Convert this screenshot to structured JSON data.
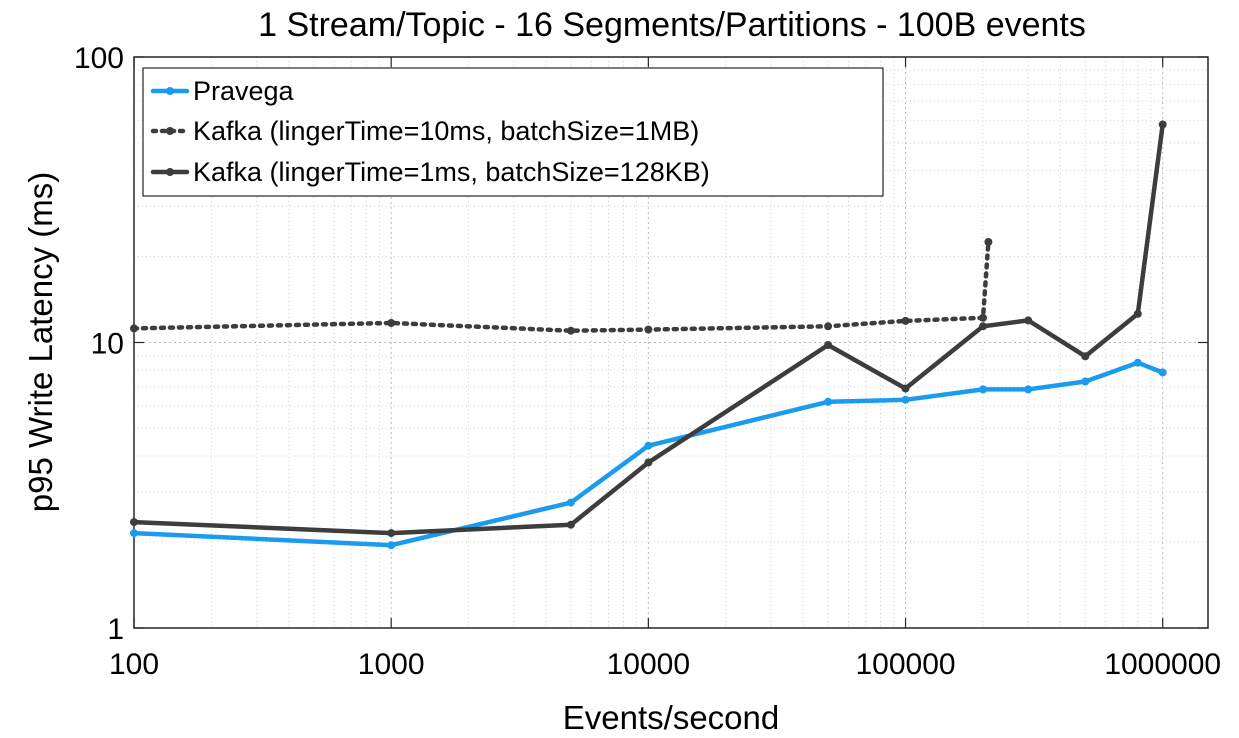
{
  "chart_data": {
    "type": "line",
    "title": "1 Stream/Topic - 16 Segments/Partitions - 100B events",
    "xlabel": "Events/second",
    "ylabel": "p95 Write Latency (ms)",
    "xscale": "log",
    "yscale": "log",
    "xlim": [
      100,
      1500000
    ],
    "ylim": [
      1,
      100
    ],
    "xticks": [
      100,
      1000,
      10000,
      100000,
      1000000
    ],
    "xtick_labels": [
      "100",
      "1000",
      "10000",
      "100000",
      "1000000"
    ],
    "yticks": [
      1,
      10,
      100
    ],
    "ytick_labels": [
      "1",
      "10",
      "100"
    ],
    "grid": "major and minor, dotted",
    "legend_position": "top-left",
    "series": [
      {
        "name": "Pravega",
        "color": "#1a9bf0",
        "line_style": "solid",
        "points": [
          [
            100,
            2.15
          ],
          [
            1000,
            1.95
          ],
          [
            5000,
            2.75
          ],
          [
            10000,
            4.35
          ],
          [
            50000,
            6.2
          ],
          [
            100000,
            6.3
          ],
          [
            200000,
            6.85
          ],
          [
            300000,
            6.85
          ],
          [
            500000,
            7.3
          ],
          [
            800000,
            8.5
          ],
          [
            1000000,
            7.85
          ]
        ]
      },
      {
        "name": "Kafka (lingerTime=10ms, batchSize=1MB)",
        "color": "#3d3d3d",
        "line_style": "dotted",
        "points": [
          [
            100,
            11.2
          ],
          [
            1000,
            11.7
          ],
          [
            5000,
            11.0
          ],
          [
            10000,
            11.1
          ],
          [
            50000,
            11.4
          ],
          [
            100000,
            11.9
          ],
          [
            200000,
            12.2
          ],
          [
            210000,
            22.5
          ]
        ]
      },
      {
        "name": "Kafka (lingerTime=1ms, batchSize=128KB)",
        "color": "#3d3d3d",
        "line_style": "solid",
        "points": [
          [
            100,
            2.35
          ],
          [
            1000,
            2.15
          ],
          [
            5000,
            2.3
          ],
          [
            10000,
            3.8
          ],
          [
            50000,
            9.8
          ],
          [
            100000,
            6.9
          ],
          [
            200000,
            11.4
          ],
          [
            300000,
            11.95
          ],
          [
            500000,
            8.95
          ],
          [
            800000,
            12.6
          ],
          [
            1000000,
            58
          ]
        ]
      }
    ]
  }
}
